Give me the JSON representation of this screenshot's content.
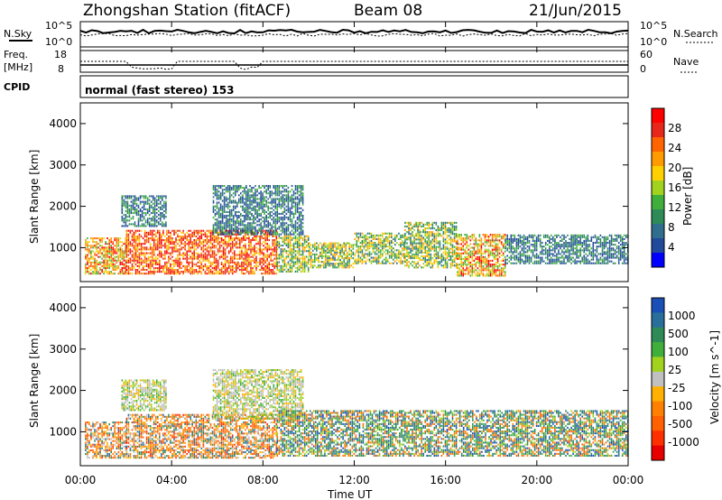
{
  "header": {
    "title": "Zhongshan Station (fitACF)",
    "beam": "Beam 08",
    "date": "21/Jun/2015"
  },
  "top_panels": {
    "nsky_label": "N.Sky",
    "nsearch_label": "N.Search",
    "freq_label": "Freq.",
    "freq_unit": "[MHz]",
    "nave_label": "Nave",
    "cpid_label": "CPID",
    "cpid_value": "normal (fast stereo) 153",
    "nsky_ticks": [
      "10^5",
      "10^0"
    ],
    "nsearch_ticks": [
      "10^5",
      "10^0"
    ],
    "freq_ticks": [
      "18",
      "8"
    ],
    "nave_ticks": [
      "60",
      "0"
    ]
  },
  "time_axis": {
    "label": "Time UT",
    "ticks": [
      "00:00",
      "04:00",
      "08:00",
      "12:00",
      "16:00",
      "20:00",
      "00:00"
    ]
  },
  "chart_data": [
    {
      "type": "heatmap",
      "panel": "power",
      "ylabel": "Slant Range [km]",
      "xlim": [
        0,
        24
      ],
      "ylim": [
        180,
        4500
      ],
      "yticks": [
        1000,
        2000,
        3000,
        4000
      ],
      "colorbar": {
        "label": "Power [dB]",
        "ticks": [
          "28",
          "24",
          "20",
          "16",
          "12",
          "8",
          "4"
        ],
        "colors": [
          "#ff0000",
          "#e8261a",
          "#ff6400",
          "#ff9b00",
          "#ffd000",
          "#a0d21e",
          "#3fae3a",
          "#2e8b57",
          "#2f6e8c",
          "#224a9a",
          "#0000ff"
        ]
      },
      "patches": [
        {
          "t": [
            0.2,
            2.0
          ],
          "r": [
            350,
            1250
          ],
          "level": "high"
        },
        {
          "t": [
            2.0,
            8.6
          ],
          "r": [
            350,
            1400
          ],
          "level": "very-high"
        },
        {
          "t": [
            1.8,
            3.8
          ],
          "r": [
            1500,
            2250
          ],
          "level": "low"
        },
        {
          "t": [
            5.8,
            9.8
          ],
          "r": [
            1300,
            2500
          ],
          "level": "low"
        },
        {
          "t": [
            8.6,
            10.0
          ],
          "r": [
            400,
            1300
          ],
          "level": "mid"
        },
        {
          "t": [
            10.0,
            12.0
          ],
          "r": [
            500,
            1100
          ],
          "level": "mid"
        },
        {
          "t": [
            12.0,
            14.2
          ],
          "r": [
            600,
            1350
          ],
          "level": "mid"
        },
        {
          "t": [
            14.2,
            16.5
          ],
          "r": [
            500,
            1600
          ],
          "level": "mid"
        },
        {
          "t": [
            16.5,
            18.6
          ],
          "r": [
            300,
            1300
          ],
          "level": "high"
        },
        {
          "t": [
            18.6,
            24.0
          ],
          "r": [
            600,
            1300
          ],
          "level": "low"
        }
      ]
    },
    {
      "type": "heatmap",
      "panel": "velocity",
      "ylabel": "Slant Range [km]",
      "xlim": [
        0,
        24
      ],
      "ylim": [
        180,
        4500
      ],
      "yticks": [
        1000,
        2000,
        3000,
        4000
      ],
      "colorbar": {
        "label": "Velocity [m s^-1]",
        "ticks": [
          "1000",
          "500",
          "100",
          "25",
          "-25",
          "-100",
          "-500",
          "-1000"
        ],
        "colors": [
          "#1a4fb8",
          "#2a6e9c",
          "#2e8b57",
          "#3fae3a",
          "#a0d21e",
          "#c0c0c0",
          "#ffb000",
          "#ff8000",
          "#ff6000",
          "#ff3000",
          "#e80000"
        ]
      },
      "patches": [
        {
          "t": [
            0.2,
            2.0
          ],
          "r": [
            350,
            1250
          ],
          "level": "negative"
        },
        {
          "t": [
            2.0,
            8.6
          ],
          "r": [
            350,
            1400
          ],
          "level": "negative"
        },
        {
          "t": [
            1.8,
            3.8
          ],
          "r": [
            1500,
            2250
          ],
          "level": "near-zero"
        },
        {
          "t": [
            5.8,
            9.8
          ],
          "r": [
            1300,
            2500
          ],
          "level": "near-zero"
        },
        {
          "t": [
            8.6,
            24.0
          ],
          "r": [
            400,
            1500
          ],
          "level": "positive"
        }
      ]
    }
  ]
}
